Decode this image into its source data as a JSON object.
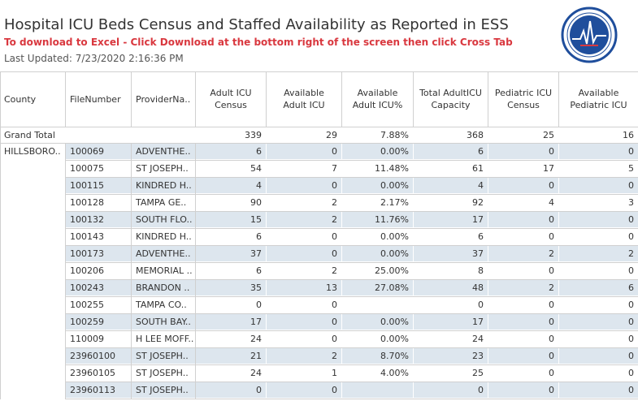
{
  "header": {
    "title": "Hospital ICU Beds Census and Staffed Availability as Reported in ESS",
    "subtitle": "To download to Excel - Click Download at the bottom right of the screen then click Cross Tab",
    "last_updated": "Last Updated: 7/23/2020 2:16:36 PM"
  },
  "colors": {
    "accent_red": "#d9383f",
    "seal_blue": "#1f4e9c",
    "band": "#dde6ee"
  },
  "columns": {
    "county": "County",
    "filenumber": "FileNumber",
    "provider": "ProviderNa..",
    "adult_census": [
      "Adult ICU",
      "Census"
    ],
    "avail_adult": [
      "Available",
      "Adult ICU"
    ],
    "avail_adult_pct": [
      "Available",
      "Adult ICU%"
    ],
    "total_capacity": [
      "Total AdultICU",
      "Capacity"
    ],
    "ped_census": [
      "Pediatric ICU",
      "Census"
    ],
    "avail_ped": [
      "Available",
      "Pediatric ICU"
    ]
  },
  "grand_total": {
    "label": "Grand Total",
    "adult_census": "339",
    "avail_adult": "29",
    "avail_adult_pct": "7.88%",
    "total_capacity": "368",
    "ped_census": "25",
    "avail_ped": "16"
  },
  "county_name": "HILLSBORO..",
  "rows": [
    {
      "file": "100069",
      "provider": "ADVENTHE..",
      "adult": "6",
      "avail": "0",
      "pct": "0.00%",
      "cap": "6",
      "ped": "0",
      "aped": "0"
    },
    {
      "file": "100075",
      "provider": "ST JOSEPH..",
      "adult": "54",
      "avail": "7",
      "pct": "11.48%",
      "cap": "61",
      "ped": "17",
      "aped": "5"
    },
    {
      "file": "100115",
      "provider": "KINDRED H..",
      "adult": "4",
      "avail": "0",
      "pct": "0.00%",
      "cap": "4",
      "ped": "0",
      "aped": "0"
    },
    {
      "file": "100128",
      "provider": "TAMPA GE..",
      "adult": "90",
      "avail": "2",
      "pct": "2.17%",
      "cap": "92",
      "ped": "4",
      "aped": "3"
    },
    {
      "file": "100132",
      "provider": "SOUTH FLO..",
      "adult": "15",
      "avail": "2",
      "pct": "11.76%",
      "cap": "17",
      "ped": "0",
      "aped": "0"
    },
    {
      "file": "100143",
      "provider": "KINDRED H..",
      "adult": "6",
      "avail": "0",
      "pct": "0.00%",
      "cap": "6",
      "ped": "0",
      "aped": "0"
    },
    {
      "file": "100173",
      "provider": "ADVENTHE..",
      "adult": "37",
      "avail": "0",
      "pct": "0.00%",
      "cap": "37",
      "ped": "2",
      "aped": "2"
    },
    {
      "file": "100206",
      "provider": "MEMORIAL ..",
      "adult": "6",
      "avail": "2",
      "pct": "25.00%",
      "cap": "8",
      "ped": "0",
      "aped": "0"
    },
    {
      "file": "100243",
      "provider": "BRANDON ..",
      "adult": "35",
      "avail": "13",
      "pct": "27.08%",
      "cap": "48",
      "ped": "2",
      "aped": "6"
    },
    {
      "file": "100255",
      "provider": "TAMPA CO..",
      "adult": "0",
      "avail": "0",
      "pct": "",
      "cap": "0",
      "ped": "0",
      "aped": "0"
    },
    {
      "file": "100259",
      "provider": "SOUTH BAY..",
      "adult": "17",
      "avail": "0",
      "pct": "0.00%",
      "cap": "17",
      "ped": "0",
      "aped": "0"
    },
    {
      "file": "110009",
      "provider": "H LEE MOFF..",
      "adult": "24",
      "avail": "0",
      "pct": "0.00%",
      "cap": "24",
      "ped": "0",
      "aped": "0"
    },
    {
      "file": "23960100",
      "provider": "ST JOSEPH..",
      "adult": "21",
      "avail": "2",
      "pct": "8.70%",
      "cap": "23",
      "ped": "0",
      "aped": "0"
    },
    {
      "file": "23960105",
      "provider": "ST JOSEPH..",
      "adult": "24",
      "avail": "1",
      "pct": "4.00%",
      "cap": "25",
      "ped": "0",
      "aped": "0"
    },
    {
      "file": "23960113",
      "provider": "ST JOSEPH..",
      "adult": "0",
      "avail": "0",
      "pct": "",
      "cap": "0",
      "ped": "0",
      "aped": "0"
    }
  ]
}
